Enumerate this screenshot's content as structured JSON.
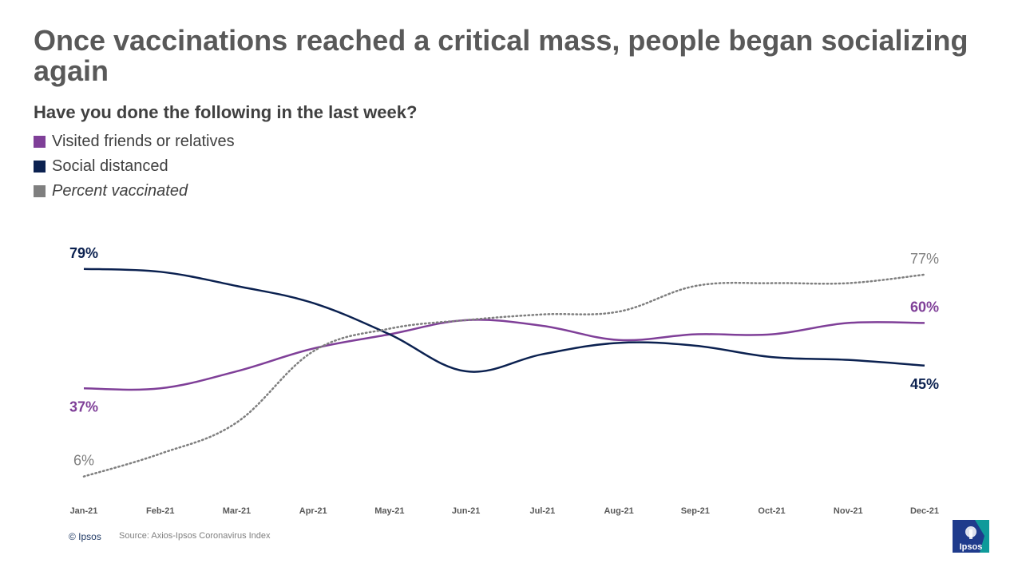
{
  "title": "Once vaccinations reached a critical mass, people began socializing again",
  "footer": {
    "copyright": "© Ipsos",
    "source": "Source: Axios-Ipsos Coronavirus Index"
  },
  "logo": {
    "text": "Ipsos",
    "colors": [
      "#1f3b8c",
      "#0f9a9a"
    ]
  },
  "chart_data": {
    "type": "line",
    "title": "Have you done the following in the last week?",
    "x": [
      "Jan-21",
      "Feb-21",
      "Mar-21",
      "Apr-21",
      "May-21",
      "Jun-21",
      "Jul-21",
      "Aug-21",
      "Sep-21",
      "Oct-21",
      "Nov-21",
      "Dec-21"
    ],
    "ylim": [
      0,
      100
    ],
    "grid": false,
    "legend_position": "top-left",
    "series": [
      {
        "name": "Visited friends or relatives",
        "color": "#7f3f98",
        "style": "solid",
        "values": [
          37,
          37,
          43,
          51,
          56,
          61,
          59,
          54,
          56,
          56,
          60,
          60
        ],
        "labels": {
          "start": "37%",
          "end": "60%"
        }
      },
      {
        "name": "Social distanced",
        "color": "#0b2150",
        "style": "solid",
        "values": [
          79,
          78,
          73,
          67,
          56,
          43,
          49,
          53,
          52,
          48,
          47,
          45
        ],
        "labels": {
          "start": "79%",
          "end": "45%"
        }
      },
      {
        "name": "Percent vaccinated",
        "color": "#7f7f7f",
        "style": "dotted",
        "values": [
          6,
          14,
          25,
          50,
          58,
          61,
          63,
          64,
          73,
          74,
          74,
          77
        ],
        "labels": {
          "start": "6%",
          "end": "77%"
        }
      }
    ]
  }
}
